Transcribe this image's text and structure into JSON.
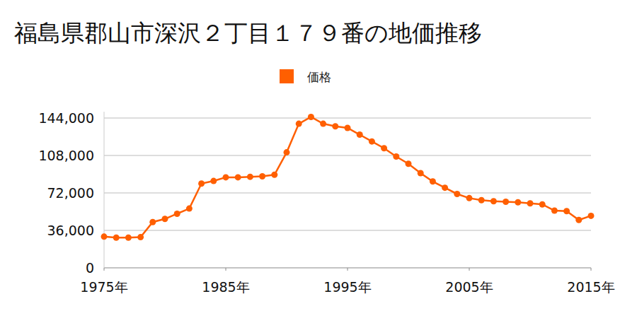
{
  "chart_data": {
    "type": "line",
    "title": "福島県郡山市深沢２丁目１７９番の地価推移",
    "x": [
      1975,
      1976,
      1977,
      1978,
      1979,
      1980,
      1981,
      1982,
      1983,
      1984,
      1985,
      1986,
      1987,
      1988,
      1989,
      1990,
      1991,
      1992,
      1993,
      1994,
      1995,
      1996,
      1997,
      1998,
      1999,
      2000,
      2001,
      2002,
      2003,
      2004,
      2005,
      2006,
      2007,
      2008,
      2009,
      2010,
      2011,
      2012,
      2013,
      2014,
      2015
    ],
    "series": [
      {
        "name": "価格",
        "color": "#ff5f00",
        "marker": "circle",
        "line_style": "solid",
        "values": [
          30000,
          29000,
          29000,
          29500,
          44000,
          47000,
          52000,
          57000,
          81000,
          83500,
          87000,
          87000,
          87500,
          88000,
          89500,
          111000,
          138500,
          145000,
          138500,
          136000,
          134500,
          128000,
          121500,
          115000,
          107000,
          100000,
          91000,
          83000,
          77000,
          71000,
          67000,
          65000,
          64000,
          63500,
          63000,
          62000,
          61000,
          55000,
          54500,
          46000,
          50000
        ]
      }
    ],
    "xlim": [
      1975,
      2015
    ],
    "xticks": [
      {
        "value": 1975,
        "label": "1975年"
      },
      {
        "value": 1985,
        "label": "1985年"
      },
      {
        "value": 1995,
        "label": "1995年"
      },
      {
        "value": 2005,
        "label": "2005年"
      },
      {
        "value": 2015,
        "label": "2015年"
      }
    ],
    "ylim": [
      0,
      150000
    ],
    "yticks": [
      0,
      {
        "value": 36000,
        "label": "36,000"
      },
      {
        "value": 72000,
        "label": "72,000"
      },
      {
        "value": 108000,
        "label": "108,000"
      },
      {
        "value": 144000,
        "label": "144,000"
      }
    ],
    "grid": true,
    "legend": "top"
  }
}
